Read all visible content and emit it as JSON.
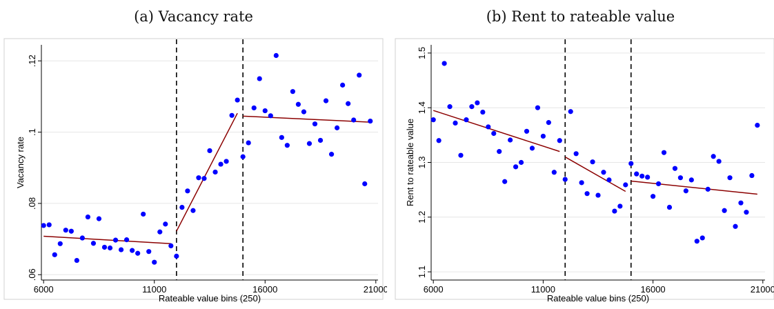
{
  "colors": {
    "points": "#0000ff",
    "fit": "#8b0000",
    "grid": "#e6e6e6",
    "axis": "#000000",
    "frame": "#d0d0d0"
  },
  "chart_data": [
    {
      "type": "scatter",
      "title": "(a) Vacancy rate",
      "xlabel": "Rateable value bins (250)",
      "ylabel": "Vacancy rate",
      "xlim": [
        5900,
        21100
      ],
      "ylim": [
        0.0585,
        0.1245
      ],
      "xticks": [
        6000,
        11000,
        16000,
        21000
      ],
      "xtick_labels": [
        "6000",
        "11000",
        "16000",
        "21000"
      ],
      "yticks": [
        0.06,
        0.08,
        0.1,
        0.12
      ],
      "ytick_labels": [
        ".06",
        ".08",
        ".1",
        ".12"
      ],
      "grid": true,
      "thresholds": [
        12000,
        15000
      ],
      "x": [
        6000,
        6250,
        6500,
        6750,
        7000,
        7250,
        7500,
        7750,
        8000,
        8250,
        8500,
        8750,
        9000,
        9250,
        9500,
        9750,
        10000,
        10250,
        10500,
        10750,
        11000,
        11250,
        11500,
        11750,
        12000,
        12250,
        12500,
        12750,
        13000,
        13250,
        13500,
        13750,
        14000,
        14250,
        14500,
        14750,
        15000,
        15250,
        15500,
        15750,
        16000,
        16250,
        16500,
        16750,
        17000,
        17250,
        17500,
        17750,
        18000,
        18250,
        18500,
        18750,
        19000,
        19250,
        19500,
        19750,
        20000,
        20250,
        20500,
        20750
      ],
      "y": [
        0.0738,
        0.074,
        0.0656,
        0.0687,
        0.0725,
        0.0722,
        0.064,
        0.0703,
        0.0762,
        0.0688,
        0.0757,
        0.0677,
        0.0675,
        0.0697,
        0.067,
        0.0698,
        0.0668,
        0.066,
        0.077,
        0.0665,
        0.0635,
        0.072,
        0.0742,
        0.0681,
        0.0652,
        0.0789,
        0.0835,
        0.078,
        0.0872,
        0.087,
        0.0948,
        0.0888,
        0.091,
        0.0918,
        0.1047,
        0.109,
        0.0931,
        0.097,
        0.1068,
        0.115,
        0.106,
        0.1046,
        0.1215,
        0.0985,
        0.0963,
        0.1114,
        0.1078,
        0.1057,
        0.0968,
        0.1023,
        0.0977,
        0.1088,
        0.0938,
        0.1012,
        0.1132,
        0.108,
        0.1034,
        0.116,
        0.0855,
        0.1031
      ],
      "fit_segments": [
        {
          "x": [
            6000,
            11750
          ],
          "y": [
            0.0708,
            0.0687
          ]
        },
        {
          "x": [
            12000,
            14750
          ],
          "y": [
            0.0722,
            0.1053
          ]
        },
        {
          "x": [
            15000,
            20750
          ],
          "y": [
            0.1045,
            0.1028
          ]
        }
      ]
    },
    {
      "type": "scatter",
      "title": "(b) Rent to rateable value",
      "xlabel": "Rateable value bins (250)",
      "ylabel": "Rent to rateable value",
      "xlim": [
        5900,
        21100
      ],
      "ylim": [
        1.085,
        1.515
      ],
      "xticks": [
        6000,
        11000,
        16000,
        21000
      ],
      "xtick_labels": [
        "6000",
        "11000",
        "16000",
        "21000"
      ],
      "yticks": [
        1.1,
        1.2,
        1.3,
        1.4,
        1.5
      ],
      "ytick_labels": [
        "1.1",
        "1.2",
        "1.3",
        "1.4",
        "1.5"
      ],
      "grid": true,
      "thresholds": [
        12000,
        15000
      ],
      "x": [
        6000,
        6250,
        6500,
        6750,
        7000,
        7250,
        7500,
        7750,
        8000,
        8250,
        8500,
        8750,
        9000,
        9250,
        9500,
        9750,
        10000,
        10250,
        10500,
        10750,
        11000,
        11250,
        11500,
        11750,
        12000,
        12250,
        12500,
        12750,
        13000,
        13250,
        13500,
        13750,
        14000,
        14250,
        14500,
        14750,
        15000,
        15250,
        15500,
        15750,
        16000,
        16250,
        16500,
        16750,
        17000,
        17250,
        17500,
        17750,
        18000,
        18250,
        18500,
        18750,
        19000,
        19250,
        19500,
        19750,
        20000,
        20250,
        20500,
        20750
      ],
      "y": [
        1.378,
        1.34,
        1.481,
        1.402,
        1.372,
        1.313,
        1.378,
        1.402,
        1.409,
        1.392,
        1.365,
        1.353,
        1.32,
        1.265,
        1.341,
        1.292,
        1.3,
        1.357,
        1.326,
        1.4,
        1.348,
        1.373,
        1.282,
        1.34,
        1.269,
        1.393,
        1.316,
        1.263,
        1.243,
        1.301,
        1.24,
        1.282,
        1.268,
        1.211,
        1.22,
        1.259,
        1.298,
        1.279,
        1.275,
        1.273,
        1.238,
        1.261,
        1.318,
        1.218,
        1.289,
        1.272,
        1.248,
        1.268,
        1.156,
        1.162,
        1.251,
        1.311,
        1.302,
        1.212,
        1.272,
        1.183,
        1.226,
        1.209,
        1.276,
        1.368
      ],
      "fit_segments": [
        {
          "x": [
            6000,
            11750
          ],
          "y": [
            1.395,
            1.32
          ]
        },
        {
          "x": [
            12000,
            14750
          ],
          "y": [
            1.31,
            1.247
          ]
        },
        {
          "x": [
            15000,
            20750
          ],
          "y": [
            1.266,
            1.242
          ]
        }
      ]
    }
  ]
}
